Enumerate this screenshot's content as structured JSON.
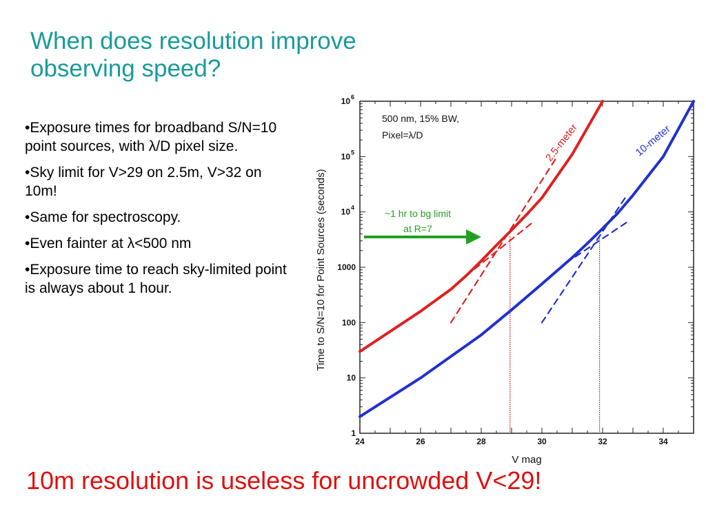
{
  "slide": {
    "title": "When does resolution improve observing speed?",
    "bullets": [
      "•Exposure times for broadband S/N=10 point sources, with λ/D pixel size.",
      "•Sky limit for V>29 on 2.5m, V>32 on 10m!",
      "•Same for spectroscopy.",
      "•Even fainter at λ<500 nm",
      "•Exposure time to reach sky-limited point is always about 1 hour."
    ],
    "footer": "10m resolution is useless for uncrowded V<29!",
    "colors": {
      "title": "#1a9a9a",
      "footer": "#e01010"
    }
  },
  "chart_data": {
    "type": "line",
    "xlabel": "V mag",
    "ylabel": "Time to S/N=10 for Point Sources (seconds)",
    "xlim": [
      24,
      35
    ],
    "ylim": [
      1,
      1000000
    ],
    "yscale": "log",
    "x_ticks": [
      "24",
      "26",
      "28",
      "30",
      "32",
      "34"
    ],
    "y_ticks": [
      {
        "value": 1000000,
        "base": "10",
        "exp": "6"
      },
      {
        "value": 100000,
        "base": "10",
        "exp": "5"
      },
      {
        "value": 10000,
        "base": "10",
        "exp": "4"
      },
      {
        "value": 1000,
        "base": "1000",
        "exp": ""
      },
      {
        "value": 100,
        "base": "100",
        "exp": ""
      },
      {
        "value": 10,
        "base": "10",
        "exp": ""
      },
      {
        "value": 1,
        "base": "1",
        "exp": ""
      }
    ],
    "annotations": {
      "conditions_line1": "500 nm, 15% BW,",
      "conditions_line2": "Pixel=λ/D",
      "arrow_line1": "~1 hr to bg limit",
      "arrow_line2": "at R=7"
    },
    "series": [
      {
        "name": "2.5-meter",
        "color": "#e02020",
        "style": "solid",
        "x": [
          24,
          26,
          27,
          27.5,
          28,
          28.5,
          29,
          29.5,
          30,
          31,
          32
        ],
        "y": [
          30,
          160,
          400,
          700,
          1300,
          2500,
          4700,
          9000,
          18000,
          110000,
          1000000
        ]
      },
      {
        "name": "2.5m background-limited asymptote",
        "color": "#e02020",
        "style": "dashed",
        "x": [
          27,
          30.5
        ],
        "y": [
          100,
          100000
        ]
      },
      {
        "name": "2.5m source-limited asymptote",
        "color": "#e02020",
        "style": "dashed",
        "x": [
          27.5,
          29.7
        ],
        "y": [
          700,
          6500
        ]
      },
      {
        "name": "10-meter",
        "color": "#2030d0",
        "style": "solid",
        "x": [
          24,
          26,
          28,
          29,
          30,
          31,
          31.5,
          32,
          32.5,
          33,
          34,
          35
        ],
        "y": [
          2,
          10,
          60,
          170,
          500,
          1500,
          2700,
          5000,
          9500,
          20000,
          100000,
          1000000
        ]
      },
      {
        "name": "10m background-limited asymptote",
        "color": "#2030d0",
        "style": "dashed",
        "x": [
          30,
          32.8
        ],
        "y": [
          100,
          20000
        ]
      },
      {
        "name": "10m source-limited asymptote",
        "color": "#2030d0",
        "style": "dashed",
        "x": [
          30.8,
          32.8
        ],
        "y": [
          1200,
          6500
        ]
      }
    ],
    "markers": [
      {
        "x": 28.95,
        "color": "#c00000"
      },
      {
        "x": 31.9,
        "color": "#2030d0"
      }
    ],
    "arrow_color": "#22a022",
    "frame_color": "#222222"
  }
}
